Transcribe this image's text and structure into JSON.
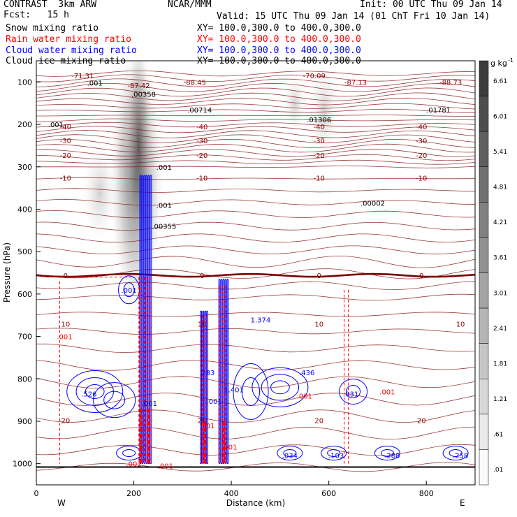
{
  "header": {
    "left_line1": "CONTRAST  3km ARW",
    "left_line2": "Fcst:   15 h",
    "center_line1": "NCAR/MMM",
    "right_line1": "Init: 00 UTC Thu 09 Jan 14",
    "valid_line": "Valid: 15 UTC Thu 09 Jan 14 (01 ChT Fri 10 Jan 14)"
  },
  "fields": [
    {
      "name": "Snow mixing ratio",
      "xy": "XY= 100.0,300.0 to 400.0,300.0",
      "color": "#000000"
    },
    {
      "name": "Rain water mixing ratio",
      "xy": "XY= 100.0,300.0 to 400.0,300.0",
      "color": "#ff0000"
    },
    {
      "name": "Cloud water mixing ratio",
      "xy": "XY= 100.0,300.0 to 400.0,300.0",
      "color": "#0000ff"
    },
    {
      "name": "Cloud ice mixing ratio",
      "xy": "XY= 100.0,300.0 to 400.0,300.0",
      "color": "#000000"
    }
  ],
  "chart_data": {
    "type": "heatmap",
    "xlabel": "Distance (km)",
    "ylabel": "Pressure (hPa)",
    "xlim": [
      0,
      900
    ],
    "ylim": [
      1050,
      50
    ],
    "x_ticks": [
      "0",
      "200",
      "400",
      "600",
      "800"
    ],
    "x_tick_values": [
      0,
      200,
      400,
      600,
      800
    ],
    "y_ticks": [
      "100",
      "200",
      "300",
      "400",
      "500",
      "600",
      "700",
      "800",
      "900",
      "1000"
    ],
    "y_tick_values": [
      100,
      200,
      300,
      400,
      500,
      600,
      700,
      800,
      900,
      1000
    ],
    "west_label": "W",
    "east_label": "E",
    "colorbar": {
      "unit": "g kg",
      "unit_exp": "-1",
      "labels": [
        "6.61",
        "6.01",
        "5.41",
        "4.81",
        "4.21",
        "3.61",
        "3.01",
        "2.41",
        "1.81",
        "1.21",
        ".61",
        ".01"
      ]
    },
    "temperature_contours": [
      {
        "label": "-40",
        "p": 205,
        "color": "#8b0000"
      },
      {
        "label": "-30",
        "p": 238,
        "color": "#8b0000"
      },
      {
        "label": "-20",
        "p": 272,
        "color": "#8b0000"
      },
      {
        "label": "-10",
        "p": 326,
        "color": "#8b0000"
      },
      {
        "label": "0",
        "p": 556,
        "color": "#8b0000"
      },
      {
        "label": "10",
        "p": 670,
        "color": "#8b0000"
      },
      {
        "label": "20",
        "p": 898,
        "color": "#8b0000"
      }
    ],
    "annotations": [
      {
        "text": "-71.31",
        "x": 95,
        "p": 85,
        "color": "#8b0000"
      },
      {
        "text": "-88.45",
        "x": 325,
        "p": 100,
        "color": "#8b0000"
      },
      {
        "text": "-70.09",
        "x": 570,
        "p": 85,
        "color": "#8b0000"
      },
      {
        "text": "-87.13",
        "x": 655,
        "p": 100,
        "color": "#8b0000"
      },
      {
        "text": "-88.73",
        "x": 850,
        "p": 100,
        "color": "#8b0000"
      },
      {
        "text": "-87.42",
        "x": 210,
        "p": 108,
        "color": "#8b0000"
      },
      {
        "text": ".001",
        "x": 120,
        "p": 102,
        "color": "#000000"
      },
      {
        "text": ".00358",
        "x": 220,
        "p": 128,
        "color": "#000000"
      },
      {
        "text": ".00714",
        "x": 335,
        "p": 165,
        "color": "#000000"
      },
      {
        "text": ".01306",
        "x": 580,
        "p": 188,
        "color": "#000000"
      },
      {
        "text": ".01781",
        "x": 825,
        "p": 165,
        "color": "#000000"
      },
      {
        "text": ".001",
        "x": 40,
        "p": 200,
        "color": "#000000"
      },
      {
        "text": ".001",
        "x": 262,
        "p": 300,
        "color": "#000000"
      },
      {
        "text": ".00002",
        "x": 690,
        "p": 385,
        "color": "#000000"
      },
      {
        "text": ".001",
        "x": 262,
        "p": 390,
        "color": "#000000"
      },
      {
        "text": ".00355",
        "x": 262,
        "p": 440,
        "color": "#000000"
      },
      {
        "text": ".001",
        "x": 190,
        "p": 590,
        "color": "#0000ff"
      },
      {
        "text": "1.374",
        "x": 460,
        "p": 660,
        "color": "#0000ff"
      },
      {
        "text": ".283",
        "x": 350,
        "p": 785,
        "color": "#0000ff"
      },
      {
        "text": ".436",
        "x": 555,
        "p": 785,
        "color": "#0000ff"
      },
      {
        "text": ".526",
        "x": 108,
        "p": 835,
        "color": "#0000ff"
      },
      {
        "text": "1.401",
        "x": 405,
        "p": 825,
        "color": "#0000ff"
      },
      {
        "text": ".031",
        "x": 645,
        "p": 835,
        "color": "#0000ff"
      },
      {
        "text": ".001",
        "x": 232,
        "p": 857,
        "color": "#0000ff"
      },
      {
        "text": ".001",
        "x": 365,
        "p": 852,
        "color": "#0000ff"
      },
      {
        "text": ".034",
        "x": 520,
        "p": 980,
        "color": "#0000ff"
      },
      {
        "text": ".103",
        "x": 615,
        "p": 980,
        "color": "#0000ff"
      },
      {
        "text": ".288",
        "x": 730,
        "p": 980,
        "color": "#0000ff"
      },
      {
        "text": ".258",
        "x": 870,
        "p": 980,
        "color": "#0000ff"
      },
      {
        "text": ".001",
        "x": 58,
        "p": 700,
        "color": "#ff0000"
      },
      {
        "text": ".001",
        "x": 720,
        "p": 830,
        "color": "#ff0000"
      },
      {
        "text": ".001",
        "x": 550,
        "p": 840,
        "color": "#ff0000"
      },
      {
        "text": ".001",
        "x": 350,
        "p": 910,
        "color": "#ff0000"
      },
      {
        "text": ".002",
        "x": 200,
        "p": 1000,
        "color": "#ff0000"
      },
      {
        "text": ".001",
        "x": 265,
        "p": 1005,
        "color": "#ff0000"
      },
      {
        "text": ".001",
        "x": 396,
        "p": 960,
        "color": "#ff0000"
      }
    ]
  }
}
